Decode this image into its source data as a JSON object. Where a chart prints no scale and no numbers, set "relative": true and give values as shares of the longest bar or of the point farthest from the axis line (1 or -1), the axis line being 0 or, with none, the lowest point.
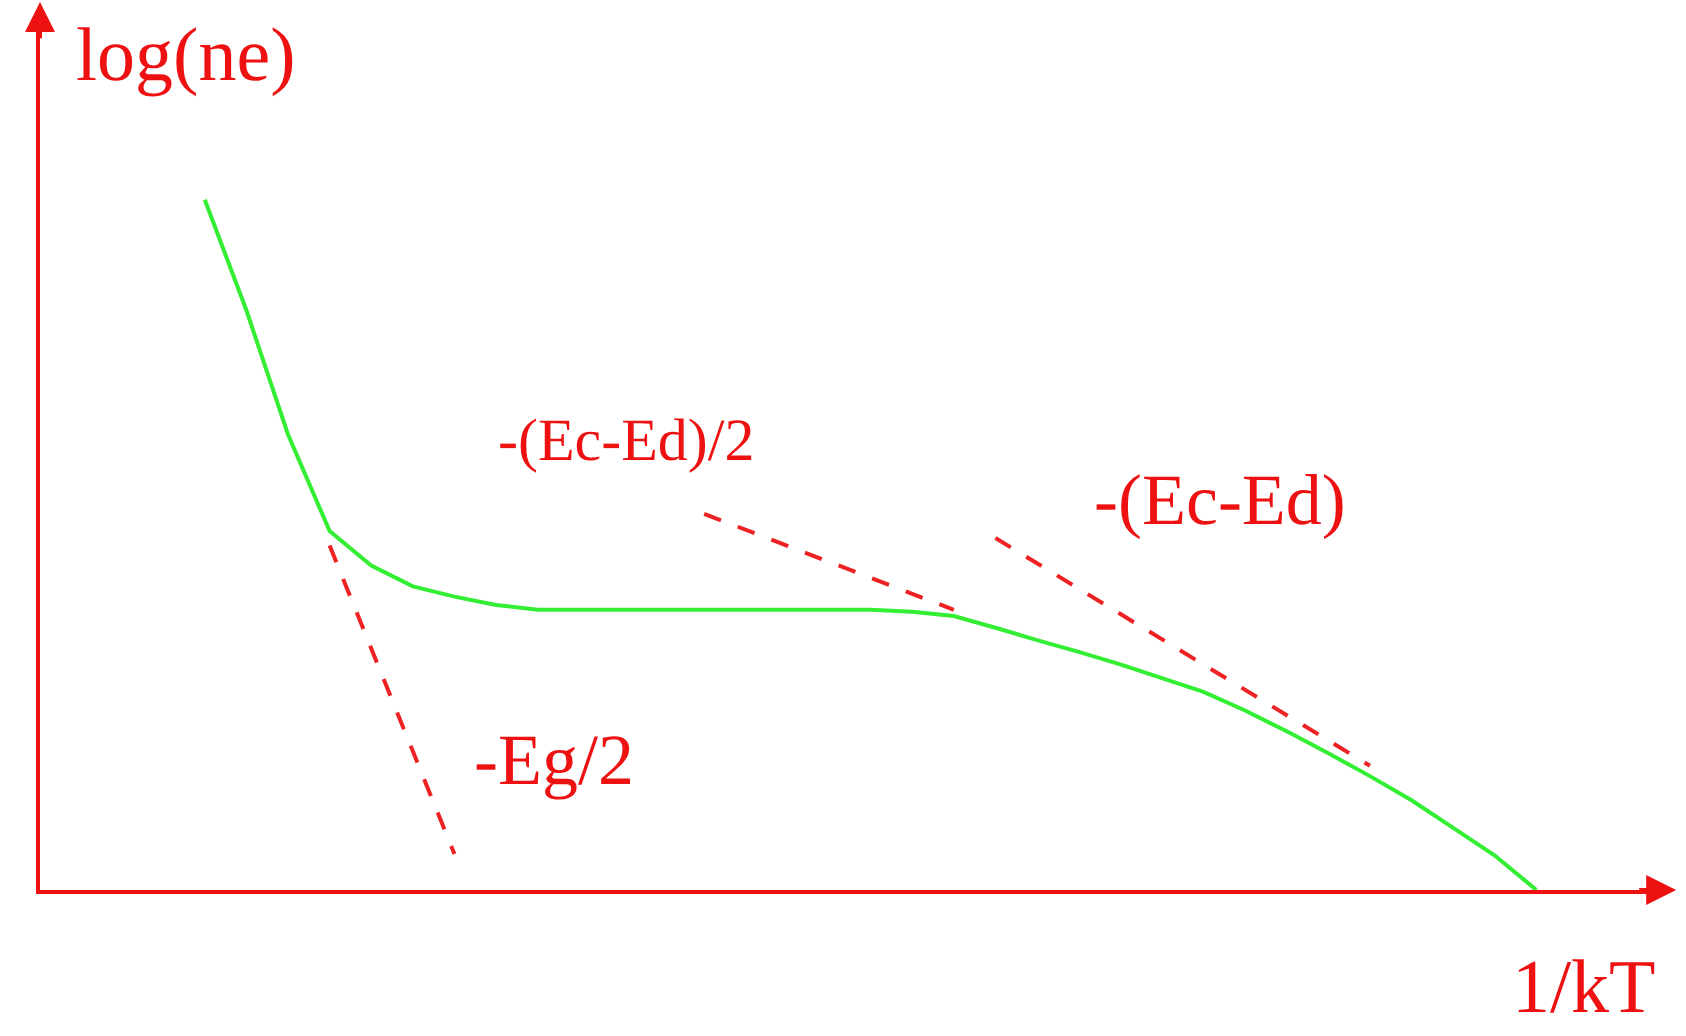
{
  "chart_data": {
    "type": "line",
    "relative": true,
    "xlabel": "1/kT",
    "ylabel": "log(ne)",
    "marker": "none",
    "categories": [
      null,
      null,
      null,
      null,
      null,
      null,
      null,
      null,
      null,
      null,
      null,
      null,
      null,
      null,
      null,
      null,
      null,
      null,
      null,
      null,
      null,
      null,
      null,
      null,
      null,
      null,
      null,
      null,
      null,
      null,
      null,
      null,
      null
    ],
    "series": [
      {
        "color": "#33ee33",
        "line_style": "solid",
        "values": [
          1.0,
          0.84,
          0.66,
          0.52,
          0.47,
          0.44,
          0.425,
          0.413,
          0.406,
          0.406,
          0.406,
          0.406,
          0.406,
          0.406,
          0.406,
          0.406,
          0.406,
          0.403,
          0.397,
          0.38,
          0.362,
          0.345,
          0.327,
          0.307,
          0.287,
          0.26,
          0.23,
          0.198,
          0.165,
          0.13,
          0.09,
          0.05,
          0.0
        ]
      },
      {
        "color": "#ee2222",
        "line_style": "dashed",
        "values": [
          null,
          null,
          null,
          0.499,
          null,
          null,
          0.052,
          null,
          null,
          null,
          null,
          null,
          null,
          null,
          null,
          null,
          null,
          null,
          null,
          null,
          null,
          null,
          null,
          null,
          null,
          null,
          null,
          null,
          null,
          null,
          null,
          null,
          null
        ]
      },
      {
        "color": "#ee2222",
        "line_style": "dashed",
        "values": [
          null,
          null,
          null,
          null,
          null,
          null,
          null,
          null,
          null,
          null,
          null,
          null,
          0.545,
          null,
          null,
          null,
          null,
          null,
          0.406,
          null,
          null,
          null,
          null,
          null,
          null,
          null,
          null,
          null,
          null,
          null,
          null,
          null,
          null
        ]
      },
      {
        "color": "#ee2222",
        "line_style": "dashed",
        "values": [
          null,
          null,
          null,
          null,
          null,
          null,
          null,
          null,
          null,
          null,
          null,
          null,
          null,
          null,
          null,
          null,
          null,
          null,
          null,
          0.51,
          null,
          null,
          null,
          null,
          null,
          null,
          null,
          null,
          0.18,
          null,
          null,
          null,
          null
        ]
      }
    ],
    "annotations": [
      "-Eg/2",
      "-(Ec-Ed)/2",
      "-(Ec-Ed)"
    ]
  }
}
